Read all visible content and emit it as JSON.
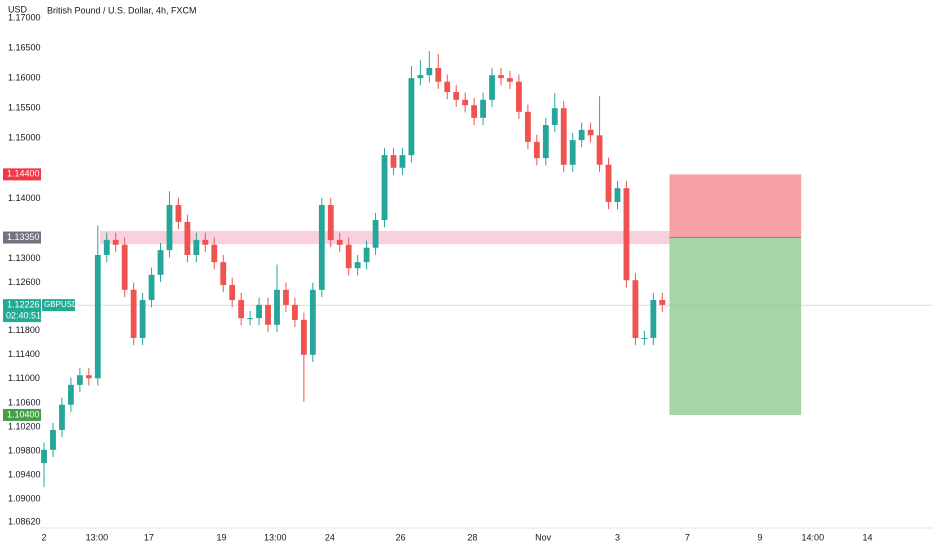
{
  "chart_data": {
    "type": "candlestick",
    "title": "British Pound / U.S. Dollar, 4h, FXCM",
    "y_axis_label": "USD",
    "up_color": "#26a69a",
    "down_color": "#ef5350",
    "x": [
      0,
      1,
      2,
      3,
      4,
      5,
      6,
      7,
      8,
      9,
      10,
      11,
      12,
      13,
      14,
      15,
      16,
      17,
      18,
      19,
      20,
      21,
      22,
      23,
      24,
      25,
      26,
      27,
      28,
      29,
      30,
      31,
      32,
      33,
      34,
      35,
      36,
      37,
      38,
      39,
      40,
      41,
      42,
      43,
      44,
      45,
      46,
      47,
      48,
      49,
      50,
      51,
      52,
      53,
      54,
      55,
      56,
      57,
      58,
      59,
      60,
      61,
      62,
      63,
      64,
      65,
      66,
      67,
      68,
      69
    ],
    "open": [
      1.096,
      1.0982,
      1.1015,
      1.1057,
      1.109,
      1.1106,
      1.1101,
      1.1306,
      1.1331,
      1.1323,
      1.1248,
      1.1168,
      1.1231,
      1.1273,
      1.1314,
      1.1389,
      1.1361,
      1.1306,
      1.1331,
      1.1323,
      1.1294,
      1.1256,
      1.1231,
      1.1201,
      1.1201,
      1.1223,
      1.119,
      1.1248,
      1.1223,
      1.1198,
      1.114,
      1.1248,
      1.1389,
      1.1331,
      1.1323,
      1.1284,
      1.1294,
      1.1318,
      1.1364,
      1.1472,
      1.1451,
      1.1472,
      1.16,
      1.1605,
      1.1617,
      1.1594,
      1.1577,
      1.1564,
      1.1555,
      1.1534,
      1.1564,
      1.1605,
      1.16,
      1.1594,
      1.1544,
      1.1494,
      1.1467,
      1.1522,
      1.155,
      1.1456,
      1.1497,
      1.1514,
      1.1505,
      1.1456,
      1.1394,
      1.1417,
      1.1264,
      1.1168,
      1.1168,
      1.1231
    ],
    "high": [
      1.0994,
      1.1027,
      1.1069,
      1.1102,
      1.1118,
      1.1118,
      1.1355,
      1.1343,
      1.1343,
      1.1335,
      1.126,
      1.1243,
      1.1285,
      1.1326,
      1.1412,
      1.1401,
      1.1373,
      1.1343,
      1.1343,
      1.1335,
      1.1306,
      1.1268,
      1.1243,
      1.1213,
      1.1235,
      1.1235,
      1.129,
      1.126,
      1.1235,
      1.121,
      1.126,
      1.1401,
      1.1401,
      1.1343,
      1.1335,
      1.1306,
      1.133,
      1.1376,
      1.1484,
      1.1484,
      1.1484,
      1.162,
      1.163,
      1.1645,
      1.164,
      1.1606,
      1.1589,
      1.1576,
      1.1567,
      1.1576,
      1.1617,
      1.1617,
      1.1612,
      1.1606,
      1.1556,
      1.1506,
      1.1534,
      1.1575,
      1.1562,
      1.1509,
      1.1526,
      1.1526,
      1.157,
      1.1468,
      1.1429,
      1.1429,
      1.1276,
      1.118,
      1.1243,
      1.1243
    ],
    "low": [
      1.092,
      1.097,
      1.1003,
      1.1045,
      1.1078,
      1.1089,
      1.1089,
      1.1294,
      1.1311,
      1.1236,
      1.1156,
      1.1156,
      1.1219,
      1.1261,
      1.1302,
      1.1349,
      1.1294,
      1.1294,
      1.1311,
      1.1282,
      1.1244,
      1.1219,
      1.1189,
      1.1189,
      1.1189,
      1.1178,
      1.1178,
      1.1211,
      1.1186,
      1.1062,
      1.1128,
      1.1236,
      1.1319,
      1.1311,
      1.1272,
      1.1272,
      1.1282,
      1.1306,
      1.1352,
      1.1439,
      1.1439,
      1.146,
      1.1588,
      1.1593,
      1.1582,
      1.1565,
      1.1552,
      1.1543,
      1.1522,
      1.1522,
      1.1552,
      1.1588,
      1.1582,
      1.1532,
      1.1482,
      1.1455,
      1.1455,
      1.151,
      1.1444,
      1.1444,
      1.1485,
      1.1493,
      1.1444,
      1.1382,
      1.1382,
      1.1252,
      1.1156,
      1.1156,
      1.1156,
      1.1211
    ],
    "close": [
      1.0982,
      1.1015,
      1.1057,
      1.109,
      1.1106,
      1.1101,
      1.1306,
      1.1331,
      1.1323,
      1.1248,
      1.1168,
      1.1231,
      1.1273,
      1.1314,
      1.1389,
      1.1361,
      1.1306,
      1.1331,
      1.1323,
      1.1294,
      1.1256,
      1.1231,
      1.1201,
      1.1201,
      1.1223,
      1.119,
      1.1248,
      1.1223,
      1.1198,
      1.114,
      1.1248,
      1.1389,
      1.1331,
      1.1323,
      1.1284,
      1.1294,
      1.1318,
      1.1364,
      1.1472,
      1.1451,
      1.1472,
      1.16,
      1.1605,
      1.1617,
      1.1594,
      1.1577,
      1.1564,
      1.1555,
      1.1534,
      1.1564,
      1.1605,
      1.16,
      1.1594,
      1.1544,
      1.1494,
      1.1467,
      1.1522,
      1.155,
      1.1456,
      1.1497,
      1.1514,
      1.1505,
      1.1456,
      1.1394,
      1.1417,
      1.1264,
      1.1168,
      1.1168,
      1.1231,
      1.1223
    ],
    "xlim": [
      -0.45,
      99.1
    ],
    "xticks": [
      {
        "value": 0,
        "label": "2"
      },
      {
        "value": 5.9,
        "label": "13:00"
      },
      {
        "value": 11.7,
        "label": "17"
      },
      {
        "value": 19.8,
        "label": "19"
      },
      {
        "value": 25.8,
        "label": "13:00"
      },
      {
        "value": 31.9,
        "label": "24"
      },
      {
        "value": 39.8,
        "label": "26"
      },
      {
        "value": 47.8,
        "label": "28"
      },
      {
        "value": 55.7,
        "label": "Nov"
      },
      {
        "value": 64,
        "label": "3"
      },
      {
        "value": 71.8,
        "label": "7"
      },
      {
        "value": 79.9,
        "label": "9"
      },
      {
        "value": 85.8,
        "label": "14:00"
      },
      {
        "value": 91.9,
        "label": "14"
      }
    ],
    "ylim": [
      1.0862,
      1.17
    ],
    "yticks": [
      {
        "value": 1.17,
        "label": "1.17000"
      },
      {
        "value": 1.165,
        "label": "1.16500"
      },
      {
        "value": 1.16,
        "label": "1.16000"
      },
      {
        "value": 1.155,
        "label": "1.15500"
      },
      {
        "value": 1.15,
        "label": "1.15000"
      },
      {
        "value": 1.14,
        "label": "1.14000"
      },
      {
        "value": 1.13,
        "label": "1.13000"
      },
      {
        "value": 1.126,
        "label": "1.12600"
      },
      {
        "value": 1.118,
        "label": "1.11800"
      },
      {
        "value": 1.114,
        "label": "1.11400"
      },
      {
        "value": 1.11,
        "label": "1.11000"
      },
      {
        "value": 1.106,
        "label": "1.10600"
      },
      {
        "value": 1.102,
        "label": "1.10200"
      },
      {
        "value": 1.098,
        "label": "1.09800"
      },
      {
        "value": 1.094,
        "label": "1.09400"
      },
      {
        "value": 1.09,
        "label": "1.09000"
      },
      {
        "value": 1.0862,
        "label": "1.08620"
      }
    ],
    "zone": {
      "x_start": 6.25,
      "x_end": 70.1,
      "low": 1.1324,
      "high": 1.1346,
      "color": "#f8bbd0"
    },
    "position": {
      "x_start": 69.8,
      "x_end": 84.5,
      "entry": 1.1335,
      "stop": 1.144,
      "target": 1.104,
      "stop_color": "#f7a1a6",
      "target_color": "#a5d6a7"
    },
    "price_labels": [
      {
        "value": 1.144,
        "label": "1.14400",
        "color": "#f23645"
      },
      {
        "value": 1.1335,
        "label": "1.13350",
        "color": "#6f737e"
      },
      {
        "value": 1.104,
        "label": "1.10400",
        "color": "#43a047"
      }
    ],
    "last_price": {
      "value": 1.12226,
      "label": "1.12226",
      "symbol": "GBPUSD",
      "countdown": "02:40:51",
      "color": "#22ab94"
    }
  }
}
